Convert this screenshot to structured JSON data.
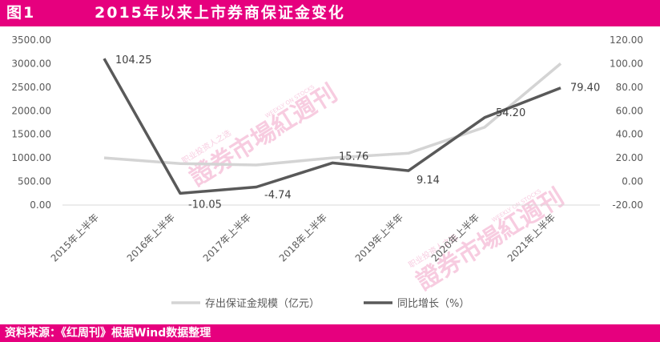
{
  "header": {
    "figure_label": "图1",
    "title": "2015年以来上市券商保证金变化"
  },
  "source": "资料来源：《红周刊》根据Wind数据整理",
  "watermark": {
    "main": "證券市場紅週刊",
    "sub": "职业投资人之选",
    "en": "WEEKLY ON STOCKS"
  },
  "colors": {
    "brand": "#e6007e",
    "series_margin": "#d4d4d4",
    "series_growth": "#595959",
    "axis_text": "#595959",
    "watermark": "#f2a3c8"
  },
  "chart_data": {
    "type": "line",
    "categories": [
      "2015年上半年",
      "2016年上半年",
      "2017年上半年",
      "2018年上半年",
      "2019年上半年",
      "2020年上半年",
      "2021年上半年"
    ],
    "y_left": {
      "ticks": [
        "0.00",
        "500.00",
        "1000.00",
        "1500.00",
        "2000.00",
        "2500.00",
        "3000.00",
        "3500.00"
      ],
      "lim": [
        0,
        3500
      ]
    },
    "y_right": {
      "ticks": [
        "-20.00",
        "0.00",
        "20.00",
        "40.00",
        "60.00",
        "80.00",
        "100.00",
        "120.00"
      ],
      "lim": [
        -20,
        120
      ]
    },
    "series": [
      {
        "name": "存出保证金规模（亿元）",
        "axis": "left",
        "values": [
          1000,
          880,
          850,
          1000,
          1100,
          1650,
          3000
        ]
      },
      {
        "name": "同比增长（%）",
        "axis": "right",
        "values": [
          104.25,
          -10.05,
          -4.74,
          15.76,
          9.14,
          54.2,
          79.4
        ],
        "labels": [
          "104.25",
          "-10.05",
          "-4.74",
          "15.76",
          "9.14",
          "54.20",
          "79.40"
        ]
      }
    ],
    "grid": false,
    "legend": "bottom"
  }
}
